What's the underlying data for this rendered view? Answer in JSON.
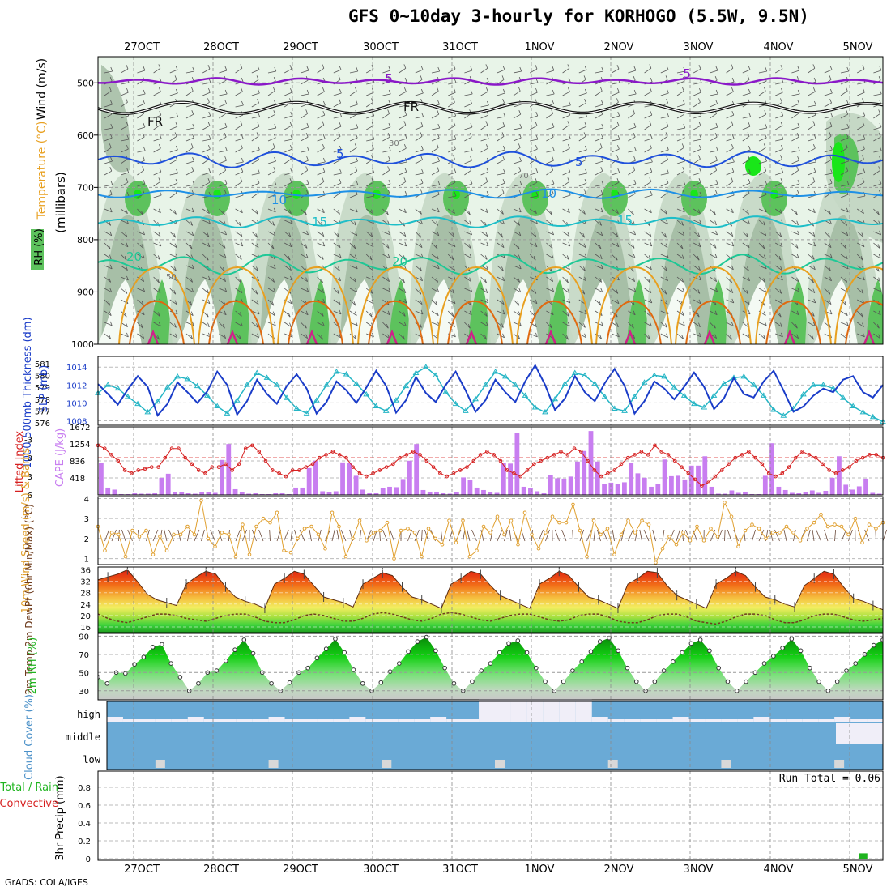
{
  "title": "GFS 0~10day 3-hourly for KORHOGO (5.5W, 9.5N)",
  "credit": "GrADS: COLA/IGES",
  "colors": {
    "rh_light": "#e8f4e8",
    "rh_mid": "#c5d8c5",
    "rh_dark": "#9fb89f",
    "rh_green": "#5dc25d",
    "rh_bright": "#19e619",
    "wind_barb": "#555555",
    "iso_purple": "#8a18c8",
    "iso_black": "#111111",
    "iso_blue": "#1e50dc",
    "iso_lightblue": "#1e90e6",
    "iso_cyan": "#1ebec8",
    "iso_teal": "#1ec896",
    "iso_orange": "#e8a020",
    "iso_darkorange": "#e06a10",
    "iso_magenta": "#d0208a",
    "slp": "#1a3cc8",
    "thickness": "#25b5c5",
    "cape": "#c87ef0",
    "lifted": "#d62020",
    "wind10": "#e0a030",
    "temp_hot": "#e02010",
    "temp_warm": "#f5c040",
    "dewpt": "#6e3c1e",
    "rh2m": "#1eb41e",
    "cloud_bg": "#6aaad6",
    "cloud_fill": "#f0eef8",
    "precip": "#1eb41e"
  },
  "days": [
    "27OCT",
    "28OCT",
    "29OCT",
    "30OCT",
    "31OCT",
    "1NOV",
    "2NOV",
    "3NOV",
    "4NOV",
    "5NOV"
  ],
  "chart_data": [
    {
      "id": "upper-air",
      "type": "heatmap",
      "ylabel": "(millibars)",
      "left_labels": [
        "Wind (m/s)",
        "Temperature (°C)",
        "RH (%)"
      ],
      "yticks": [
        500,
        600,
        700,
        800,
        900,
        1000
      ],
      "ylim": [
        1000,
        450
      ],
      "isotherm_labels": [
        {
          "text": "-5",
          "color": "iso_purple"
        },
        {
          "text": "FR",
          "color": "iso_black"
        },
        {
          "text": "5",
          "color": "iso_blue"
        },
        {
          "text": "10",
          "color": "iso_lightblue"
        },
        {
          "text": "15",
          "color": "iso_cyan"
        },
        {
          "text": "20",
          "color": "iso_teal"
        }
      ],
      "rh_labels": [
        "30",
        "50",
        "70"
      ]
    },
    {
      "id": "slp-thickness",
      "type": "line",
      "ylabel_left": "1000-500mb Thickness (dm)",
      "ylabel_right": "SLP (mb)",
      "left_ticks": [
        "576",
        "577",
        "578",
        "579",
        "580",
        "581"
      ],
      "right_ticks": [
        "1008",
        "1010",
        "1012",
        "1014"
      ],
      "ylim_left": [
        575.8,
        581.6
      ],
      "ylim_right": [
        1007.5,
        1015.2
      ],
      "series": [
        {
          "name": "SLP (mb)",
          "axis": "right",
          "color": "slp",
          "values": [
            1012.1,
            1011.0,
            1009.8,
            1011.5,
            1013.0,
            1011.8,
            1008.6,
            1009.9,
            1012.3,
            1011.2,
            1010.0,
            1011.3,
            1013.5,
            1012.0,
            1008.7,
            1010.2,
            1012.6,
            1011.0,
            1009.9,
            1011.9,
            1013.2,
            1011.6,
            1008.8,
            1010.1,
            1012.4,
            1011.4,
            1010.0,
            1011.7,
            1013.6,
            1011.9,
            1008.9,
            1010.3,
            1012.9,
            1011.1,
            1010.1,
            1012.0,
            1013.5,
            1011.4,
            1009.0,
            1010.3,
            1012.6,
            1011.2,
            1010.1,
            1012.4,
            1014.2,
            1012.0,
            1009.2,
            1010.5,
            1013.0,
            1011.2,
            1010.2,
            1012.2,
            1013.8,
            1011.9,
            1008.8,
            1010.2,
            1012.4,
            1011.6,
            1010.4,
            1011.8,
            1013.4,
            1011.8,
            1009.3,
            1010.5,
            1012.8,
            1011.0,
            1010.6,
            1012.4,
            1013.6,
            1011.4,
            1009.0,
            1009.6,
            1010.8,
            1011.6,
            1011.2,
            1012.6,
            1013.0,
            1011.2,
            1010.6,
            1012.0
          ]
        },
        {
          "name": "Thickness (dm)",
          "axis": "left",
          "color": "thickness",
          "values": [
            578.5,
            579.2,
            578.9,
            578.2,
            577.6,
            576.9,
            577.8,
            579.0,
            579.9,
            579.7,
            579.1,
            578.3,
            577.4,
            576.8,
            577.9,
            579.2,
            580.2,
            579.8,
            579.2,
            578.1,
            577.2,
            576.8,
            577.9,
            579.2,
            580.3,
            580.1,
            579.3,
            578.4,
            577.4,
            577.0,
            577.9,
            579.1,
            580.2,
            580.7,
            580.0,
            578.6,
            577.6,
            577.0,
            578.0,
            579.2,
            580.3,
            579.9,
            579.2,
            578.3,
            577.3,
            576.9,
            578.0,
            579.3,
            580.2,
            580.0,
            579.3,
            578.2,
            577.2,
            577.0,
            578.2,
            579.4,
            580.0,
            579.9,
            579.0,
            578.3,
            577.6,
            577.3,
            578.3,
            579.3,
            579.8,
            579.9,
            579.2,
            578.3,
            577.1,
            576.6,
            577.2,
            578.4,
            579.2,
            579.2,
            578.9,
            578.1,
            577.4,
            576.9,
            576.5,
            576.1
          ]
        }
      ]
    },
    {
      "id": "cape-lifted",
      "type": "bar",
      "ylabel_left": "Lifted Index",
      "ylabel_right": "CAPE (J/kg)",
      "left_ticks": [
        "-3",
        "0",
        "3",
        "6"
      ],
      "right_ticks": [
        "418",
        "836",
        "1254",
        "1672"
      ],
      "ylim_cape": [
        0,
        1672
      ],
      "ylim_li": [
        6,
        -5
      ],
      "series": [
        {
          "name": "CAPE (J/kg)",
          "color": "cape",
          "values": [
            780,
            180,
            130,
            20,
            20,
            40,
            30,
            30,
            40,
            420,
            520,
            70,
            70,
            40,
            30,
            70,
            60,
            50,
            860,
            1250,
            140,
            70,
            30,
            40,
            20,
            20,
            40,
            40,
            20,
            180,
            180,
            660,
            840,
            90,
            70,
            90,
            800,
            780,
            470,
            130,
            40,
            40,
            170,
            200,
            190,
            390,
            840,
            1250,
            120,
            80,
            80,
            40,
            30,
            60,
            430,
            370,
            180,
            120,
            70,
            50,
            790,
            770,
            1520,
            200,
            160,
            90,
            40,
            480,
            410,
            400,
            450,
            820,
            1080,
            1570,
            820,
            270,
            300,
            270,
            310,
            780,
            530,
            420,
            200,
            260,
            870,
            460,
            470,
            380,
            720,
            720,
            950,
            200,
            30,
            30,
            110,
            50,
            80,
            20,
            20,
            470,
            1270,
            200,
            120,
            50,
            40,
            70,
            110,
            50,
            100,
            420,
            950,
            250,
            130,
            210,
            400,
            50,
            30
          ]
        },
        {
          "name": "Lifted Index",
          "color": "lifted",
          "values": [
            -2.0,
            -1.5,
            -0.5,
            0.5,
            2.0,
            2.5,
            2.0,
            1.8,
            1.5,
            1.5,
            0.0,
            -1.5,
            -1.5,
            0.0,
            1.0,
            2.0,
            2.5,
            1.5,
            1.5,
            1.0,
            2.0,
            1.0,
            -1.5,
            -2.0,
            -1.0,
            0.5,
            2.0,
            2.5,
            3.0,
            2.0,
            2.0,
            1.5,
            1.0,
            0.0,
            -0.5,
            -1.0,
            -0.5,
            0.0,
            1.5,
            2.5,
            3.0,
            2.5,
            2.0,
            1.5,
            1.0,
            0.0,
            -0.5,
            -1.0,
            -0.5,
            0.5,
            1.5,
            2.5,
            3.0,
            2.5,
            2.0,
            1.5,
            0.5,
            -0.5,
            -1.0,
            -0.5,
            0.5,
            2.0,
            2.5,
            3.0,
            2.0,
            1.0,
            0.5,
            0.0,
            -0.5,
            -1.0,
            -0.5,
            -1.5,
            -1.0,
            0.5,
            2.0,
            3.0,
            2.5,
            2.0,
            1.0,
            0.0,
            -0.5,
            -1.0,
            -0.5,
            -2.0,
            -1.0,
            -0.5,
            0.5,
            1.5,
            2.5,
            3.5,
            4.5,
            4.0,
            3.0,
            2.0,
            1.0,
            0.0,
            -0.5,
            -1.0,
            0.0,
            1.0,
            2.5,
            3.0,
            2.5,
            1.5,
            0.0,
            -1.0,
            -0.5,
            0.0,
            1.0,
            2.0,
            2.5,
            2.0,
            1.5,
            0.5,
            0.0,
            -0.5,
            -0.5,
            0.0
          ]
        }
      ]
    },
    {
      "id": "wind10m",
      "type": "line",
      "ylabel": "10m Wind Speed (m/s) & Barbs",
      "yticks": [
        "1",
        "2",
        "3",
        "4"
      ],
      "ylim": [
        0.7,
        4.1
      ],
      "series": [
        {
          "name": "10m Wind Speed (m/s)",
          "color": "wind10",
          "values": [
            2.6,
            1.4,
            2.3,
            2.2,
            1.1,
            2.4,
            2.1,
            2.4,
            1.2,
            2.1,
            1.4,
            2.2,
            2.2,
            2.6,
            2.2,
            3.9,
            2.0,
            1.6,
            2.3,
            2.2,
            1.1,
            2.7,
            1.2,
            2.6,
            3.0,
            2.8,
            3.3,
            1.4,
            1.3,
            2.0,
            2.5,
            2.6,
            2.2,
            1.5,
            3.3,
            2.6,
            1.1,
            2.0,
            2.9,
            1.9,
            2.3,
            2.4,
            2.8,
            1.0,
            2.4,
            2.5,
            2.3,
            1.1,
            2.5,
            2.0,
            1.7,
            2.9,
            1.8,
            2.9,
            1.1,
            1.4,
            2.6,
            2.3,
            3.1,
            2.2,
            2.9,
            1.7,
            3.3,
            2.2,
            1.5,
            2.3,
            3.1,
            2.8,
            2.8,
            3.7,
            2.4,
            1.1,
            2.9,
            2.2,
            2.5,
            1.2,
            2.2,
            2.9,
            2.3,
            2.9,
            2.7,
            0.8,
            1.5,
            2.1,
            1.7,
            2.3,
            1.9,
            2.6,
            1.9,
            2.5,
            2.1,
            3.8,
            3.1,
            1.6,
            2.4,
            2.7,
            2.5,
            2.0,
            2.3,
            2.3,
            2.6,
            2.3,
            1.9,
            2.5,
            2.8,
            3.2,
            2.6,
            2.7,
            2.6,
            2.2,
            3.0,
            1.8,
            2.7,
            2.5,
            2.8
          ]
        }
      ]
    },
    {
      "id": "temp-dewpt",
      "type": "area",
      "ylabel": "2m Temp 2m DewPt (6hr Min/Max) (°C)",
      "yticks": [
        "16",
        "20",
        "24",
        "28",
        "32",
        "36"
      ],
      "ylim": [
        14,
        37
      ],
      "series": [
        {
          "name": "2m Temp (°C)",
          "color": "temp_hot",
          "values": [
            32.5,
            33.5,
            34.5,
            36.0,
            32.0,
            27.5,
            25.5,
            24.5,
            23.5,
            31.0,
            33.5,
            35.5,
            34.5,
            30.0,
            26.5,
            25.0,
            24.0,
            22.5,
            31.0,
            33.0,
            35.5,
            34.5,
            30.5,
            26.5,
            25.5,
            24.5,
            23.0,
            31.0,
            33.0,
            35.0,
            34.0,
            30.0,
            26.5,
            25.5,
            24.0,
            22.5,
            31.0,
            33.0,
            35.5,
            34.5,
            30.5,
            27.0,
            25.5,
            24.0,
            22.5,
            31.0,
            33.0,
            35.5,
            34.0,
            30.0,
            26.5,
            25.5,
            24.0,
            22.5,
            31.0,
            33.0,
            35.5,
            35.0,
            30.5,
            27.0,
            25.5,
            24.0,
            22.5,
            31.0,
            33.0,
            35.5,
            34.0,
            30.0,
            26.5,
            25.5,
            24.0,
            23.0,
            30.5,
            33.0,
            35.5,
            34.5,
            30.0,
            26.0,
            25.0,
            23.5,
            22.0
          ]
        },
        {
          "name": "2m DewPt (°C)",
          "color": "dewpt",
          "values": [
            20.5,
            19.0,
            18.0,
            17.5,
            18.5,
            19.5,
            20.5,
            20.5,
            20.0,
            19.0,
            18.5,
            18.0,
            19.0,
            20.0,
            20.5,
            20.5,
            19.5,
            18.0,
            17.5,
            17.5,
            18.5,
            20.0,
            20.5,
            20.0,
            19.0,
            18.0,
            18.0,
            19.0,
            20.5,
            21.0,
            20.5,
            19.5,
            18.5,
            18.0,
            19.0,
            20.5,
            21.0,
            20.5,
            19.5,
            18.5,
            18.0,
            19.0,
            20.0,
            20.5,
            20.5,
            19.5,
            18.5,
            18.0,
            18.5,
            20.0,
            20.5,
            20.5,
            19.5,
            18.0,
            17.5,
            17.5,
            18.5,
            20.0,
            20.5,
            20.5,
            19.5,
            18.0,
            17.5,
            17.0,
            18.0,
            19.5,
            20.5,
            20.5,
            20.0,
            18.5,
            17.5,
            17.5,
            18.5,
            20.0,
            20.5,
            20.5,
            19.5,
            18.5,
            18.0,
            18.5,
            19.0
          ]
        }
      ]
    },
    {
      "id": "rh2m",
      "type": "area",
      "ylabel": "2m RH (%)",
      "yticks": [
        "30",
        "50",
        "70",
        "90"
      ],
      "ylim": [
        20,
        93
      ],
      "series": [
        {
          "name": "2m RH (%)",
          "color": "rh2m",
          "values": [
            45,
            38,
            50,
            49,
            59,
            67,
            78,
            81,
            60,
            45,
            30,
            38,
            50,
            52,
            63,
            75,
            86,
            71,
            50,
            38,
            30,
            39,
            50,
            55,
            66,
            76,
            87,
            72,
            53,
            38,
            30,
            39,
            51,
            60,
            73,
            84,
            89,
            74,
            55,
            38,
            30,
            40,
            52,
            60,
            72,
            82,
            85,
            72,
            55,
            40,
            30,
            40,
            52,
            62,
            73,
            84,
            88,
            74,
            55,
            40,
            30,
            40,
            52,
            62,
            72,
            82,
            86,
            74,
            55,
            40,
            30,
            40,
            50,
            60,
            68,
            77,
            87,
            74,
            55,
            40,
            30,
            40,
            52,
            60,
            70,
            80,
            86
          ]
        }
      ]
    },
    {
      "id": "cloud-cover",
      "type": "bar",
      "ylabel": "Cloud Cover (%)",
      "levels": [
        "high",
        "middle",
        "low"
      ]
    },
    {
      "id": "precip",
      "type": "bar",
      "ylabel_left": "Total / Rain Convective",
      "ylabel_right": "3hr Precip (mm)",
      "yticks": [
        "0",
        "0.2",
        "0.4",
        "0.6",
        "0.8"
      ],
      "ylim": [
        0,
        1.0
      ],
      "run_total_text": "Run Total = 0.06",
      "series": [
        {
          "name": "3hr Precip (mm)",
          "color": "precip",
          "values": [
            0,
            0,
            0,
            0,
            0,
            0,
            0,
            0,
            0,
            0,
            0,
            0,
            0,
            0,
            0,
            0,
            0,
            0,
            0,
            0,
            0,
            0,
            0,
            0,
            0,
            0,
            0,
            0,
            0,
            0,
            0,
            0,
            0,
            0,
            0,
            0,
            0,
            0,
            0,
            0,
            0,
            0,
            0,
            0,
            0,
            0,
            0,
            0,
            0,
            0,
            0,
            0,
            0,
            0,
            0,
            0,
            0,
            0,
            0,
            0,
            0,
            0,
            0,
            0,
            0,
            0,
            0,
            0,
            0,
            0,
            0,
            0,
            0,
            0,
            0,
            0,
            0,
            0,
            0.06,
            0,
            0
          ]
        }
      ]
    }
  ]
}
